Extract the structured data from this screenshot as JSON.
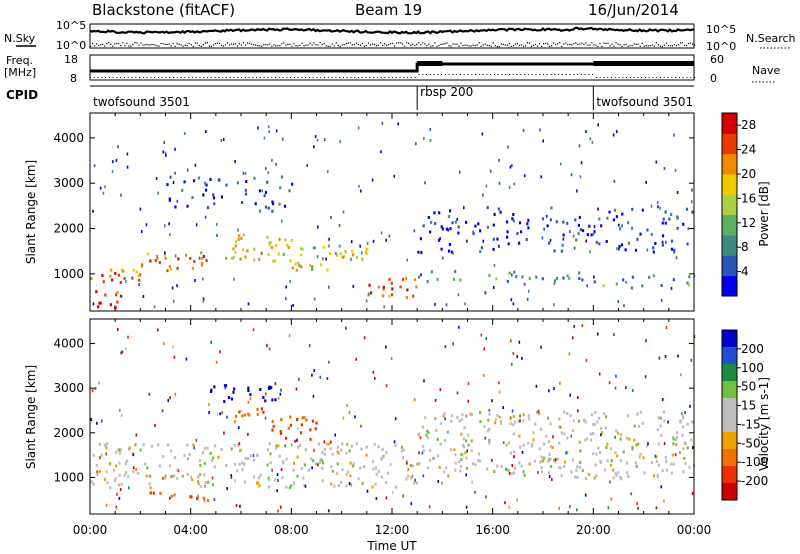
{
  "header": {
    "title": "Blackstone (fitACF)",
    "beam": "Beam 19",
    "date": "16/Jun/2014"
  },
  "strip_labels": {
    "nsky": "N.Sky",
    "nsearch": "N.Search",
    "freq_line1": "Freq.",
    "freq_line2": "[MHz]",
    "nave": "Nave",
    "cpid": "CPID",
    "pow_hi": "10^5",
    "pow_lo": "10^0",
    "freq_hi": "18",
    "freq_lo": "8",
    "nave_hi": "60",
    "nave_lo": "0"
  },
  "cpid_segments": [
    {
      "label": "twofsound 3501",
      "start_hour": 0
    },
    {
      "label": "rbsp 200",
      "start_hour": 13
    },
    {
      "label": "twofsound 3501",
      "start_hour": 20
    }
  ],
  "colors": {
    "power_scale": [
      "#0000ee",
      "#2a56b8",
      "#3d8a7e",
      "#58b060",
      "#a8d040",
      "#f0c800",
      "#f08a00",
      "#e83a00",
      "#d40000"
    ],
    "velocity_scale": [
      "#0000cc",
      "#2050d0",
      "#1e8a40",
      "#70c040",
      "#bdbdbd",
      "#bdbdbd",
      "#f0a000",
      "#f07000",
      "#e83000",
      "#cc0000"
    ]
  },
  "chart_data": [
    {
      "type": "heatmap",
      "name": "power",
      "ylabel": "Slant Range [km]",
      "xlabel": "Time UT",
      "xlim": [
        0,
        24
      ],
      "ylim": [
        180,
        4550
      ],
      "x_ticks": [
        "00:00",
        "04:00",
        "08:00",
        "12:00",
        "16:00",
        "20:00",
        "00:00"
      ],
      "y_ticks": [
        1000,
        2000,
        3000,
        4000
      ],
      "colorbar": {
        "label": "Power [dB]",
        "ticks": [
          4,
          8,
          12,
          16,
          20,
          24,
          28
        ],
        "range": [
          0,
          30
        ]
      },
      "bands": [
        {
          "t0": 0,
          "t1": 1.2,
          "r0": 200,
          "r1": 700,
          "level": 0.9
        },
        {
          "t0": 0,
          "t1": 2,
          "r0": 800,
          "r1": 1250,
          "level": 0.8
        },
        {
          "t0": 2,
          "t1": 5,
          "r0": 1100,
          "r1": 1500,
          "level": 0.75
        },
        {
          "t0": 5,
          "t1": 8,
          "r0": 1300,
          "r1": 1900,
          "level": 0.6
        },
        {
          "t0": 8,
          "t1": 11,
          "r0": 1100,
          "r1": 1700,
          "level": 0.55
        },
        {
          "t0": 11,
          "t1": 13,
          "r0": 500,
          "r1": 1000,
          "level": 0.8
        },
        {
          "t0": 3,
          "t1": 8,
          "r0": 2400,
          "r1": 3200,
          "level": 0.15
        },
        {
          "t0": 13,
          "t1": 24,
          "r0": 1500,
          "r1": 2500,
          "level": 0.1
        },
        {
          "t0": 13,
          "t1": 20,
          "r0": 800,
          "r1": 1100,
          "level": 0.3
        },
        {
          "t0": 20,
          "t1": 24,
          "r0": 700,
          "r1": 1000,
          "level": 0.35
        }
      ]
    },
    {
      "type": "heatmap",
      "name": "velocity",
      "ylabel": "Slant Range [km]",
      "xlabel": "Time UT",
      "xlim": [
        0,
        24
      ],
      "ylim": [
        180,
        4550
      ],
      "x_ticks": [
        "00:00",
        "04:00",
        "08:00",
        "12:00",
        "16:00",
        "20:00",
        "00:00"
      ],
      "y_ticks": [
        1000,
        2000,
        3000,
        4000
      ],
      "colorbar": {
        "label": "Velocity [m s-1]",
        "ticks": [
          200,
          100,
          50,
          15,
          -15,
          -50,
          -100,
          -200
        ],
        "range": [
          -250,
          250
        ]
      },
      "bands": [
        {
          "t0": 0,
          "t1": 13,
          "r0": 800,
          "r1": 1800,
          "level": 0.0
        },
        {
          "t0": 4.5,
          "t1": 7.5,
          "r0": 2700,
          "r1": 3100,
          "level": 220
        },
        {
          "t0": 5,
          "t1": 7,
          "r0": 2300,
          "r1": 2600,
          "level": -60
        },
        {
          "t0": 7,
          "t1": 9,
          "r0": 1800,
          "r1": 2400,
          "level": -80
        },
        {
          "t0": 13,
          "t1": 24,
          "r0": 1000,
          "r1": 2500,
          "level": 0.0
        },
        {
          "t0": 2,
          "t1": 5,
          "r0": 500,
          "r1": 700,
          "level": -70
        }
      ]
    }
  ]
}
